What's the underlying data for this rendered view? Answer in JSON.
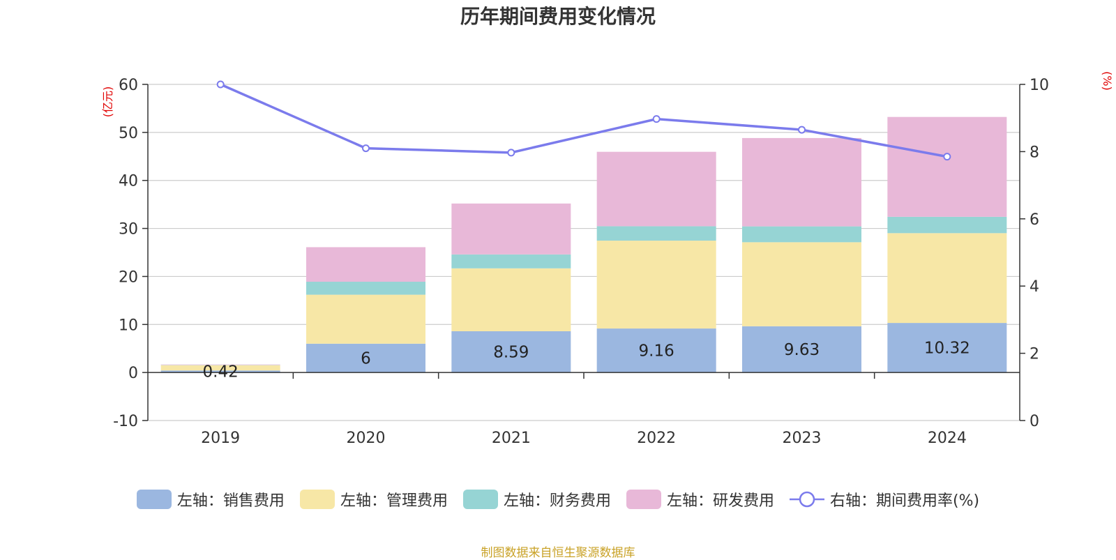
{
  "chart_data": {
    "type": "bar",
    "title": "历年期间费用变化情况",
    "categories": [
      "2019",
      "2020",
      "2021",
      "2022",
      "2023",
      "2024"
    ],
    "stacked": true,
    "left_axis": {
      "unit": "(亿元)",
      "ylim": [
        -10,
        60
      ],
      "ticks": [
        "60",
        "50",
        "40",
        "30",
        "20",
        "10",
        "0",
        "-10"
      ]
    },
    "right_axis": {
      "unit": "(%)",
      "ylim": [
        0,
        10
      ],
      "ticks": [
        "10",
        "8",
        "6",
        "4",
        "2",
        "0"
      ]
    },
    "series": [
      {
        "name": "左轴：销售费用",
        "color": "#9bb7e0",
        "axis": "left",
        "values": [
          0.42,
          6,
          8.59,
          9.16,
          9.63,
          10.32
        ],
        "labels": [
          "0.42",
          "6",
          "8.59",
          "9.16",
          "9.63",
          "10.32"
        ]
      },
      {
        "name": "左轴：管理费用",
        "color": "#f7e7a6",
        "axis": "left",
        "values": [
          1.1,
          10.2,
          13.1,
          18.3,
          17.5,
          18.7
        ]
      },
      {
        "name": "左轴：财务费用",
        "color": "#96d4d4",
        "axis": "left",
        "values": [
          0.05,
          2.7,
          2.9,
          3.0,
          3.3,
          3.4
        ]
      },
      {
        "name": "左轴：研发费用",
        "color": "#e8b8d8",
        "axis": "left",
        "values": [
          0.1,
          7.2,
          10.6,
          15.5,
          18.4,
          20.8
        ]
      },
      {
        "name": "右轴：期间费用率(%)",
        "color": "#7b7bec",
        "axis": "right",
        "type": "line",
        "values": [
          10.0,
          8.1,
          7.97,
          8.97,
          8.65,
          7.85
        ]
      }
    ],
    "grid": true,
    "legend_position": "bottom"
  },
  "source_note": "制图数据来自恒生聚源数据库"
}
